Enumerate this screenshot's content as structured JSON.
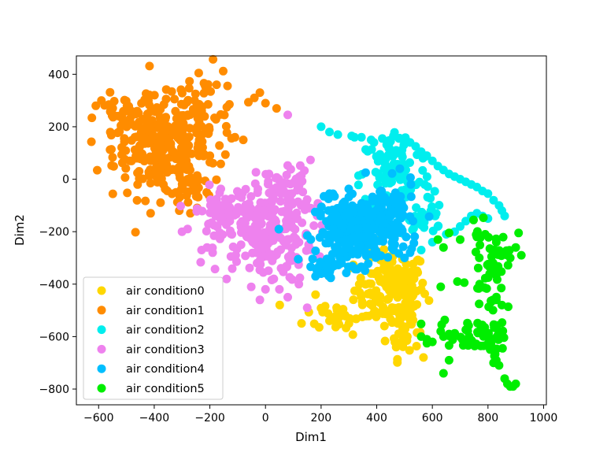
{
  "chart_data": {
    "type": "scatter",
    "title": "",
    "xlabel": "Dim1",
    "ylabel": "Dim2",
    "xlim": [
      -680,
      1010
    ],
    "ylim": [
      -860,
      470
    ],
    "xticks": [
      -600,
      -400,
      -200,
      0,
      200,
      400,
      600,
      800,
      1000
    ],
    "yticks": [
      -800,
      -600,
      -400,
      -200,
      0,
      200,
      400
    ],
    "grid": false,
    "legend": "lower-left",
    "series": [
      {
        "name": "air condition0",
        "color": "#FFD700",
        "clusters": [
          {
            "cx": 450,
            "cy": -420,
            "sx": 65,
            "sy": 75,
            "n": 150
          },
          {
            "cx": 260,
            "cy": -520,
            "sx": 60,
            "sy": 35,
            "n": 30
          },
          {
            "cx": 500,
            "cy": -560,
            "sx": 25,
            "sy": 60,
            "n": 35
          }
        ],
        "points": [
          [
            180,
            -440
          ],
          [
            230,
            -540
          ],
          [
            300,
            -550
          ],
          [
            470,
            -640
          ],
          [
            510,
            -600
          ],
          [
            560,
            -420
          ],
          [
            400,
            -450
          ]
        ]
      },
      {
        "name": "air condition1",
        "color": "#FF8C00",
        "clusters": [
          {
            "cx": -380,
            "cy": 120,
            "sx": 85,
            "sy": 95,
            "n": 220
          },
          {
            "cx": -230,
            "cy": 230,
            "sx": 70,
            "sy": 95,
            "n": 80
          },
          {
            "cx": -520,
            "cy": 230,
            "sx": 45,
            "sy": 45,
            "n": 35
          },
          {
            "cx": -270,
            "cy": -20,
            "sx": 40,
            "sy": 40,
            "n": 30
          }
        ],
        "points": [
          [
            -610,
            280
          ],
          [
            -590,
            300
          ],
          [
            -240,
            405
          ],
          [
            -20,
            330
          ],
          [
            0,
            290
          ],
          [
            -40,
            310
          ],
          [
            -110,
            160
          ],
          [
            -80,
            150
          ],
          [
            40,
            270
          ],
          [
            -270,
            -130
          ],
          [
            -310,
            -120
          ]
        ]
      },
      {
        "name": "air condition2",
        "color": "#00EEEE",
        "clusters": [
          {
            "cx": 470,
            "cy": 10,
            "sx": 65,
            "sy": 90,
            "n": 100
          },
          {
            "cx": 560,
            "cy": -140,
            "sx": 40,
            "sy": 40,
            "n": 25
          }
        ],
        "points": [
          [
            390,
            140
          ],
          [
            420,
            155
          ],
          [
            450,
            145
          ],
          [
            480,
            155
          ],
          [
            505,
            150
          ],
          [
            520,
            140
          ],
          [
            540,
            125
          ],
          [
            560,
            105
          ],
          [
            580,
            90
          ],
          [
            600,
            70
          ],
          [
            620,
            50
          ],
          [
            640,
            35
          ],
          [
            660,
            20
          ],
          [
            680,
            10
          ],
          [
            700,
            0
          ],
          [
            720,
            -10
          ],
          [
            740,
            -20
          ],
          [
            760,
            -30
          ],
          [
            780,
            -45
          ],
          [
            800,
            -55
          ],
          [
            820,
            -80
          ],
          [
            840,
            -100
          ],
          [
            850,
            -120
          ],
          [
            860,
            -140
          ],
          [
            200,
            200
          ],
          [
            230,
            180
          ],
          [
            260,
            170
          ],
          [
            310,
            165
          ],
          [
            320,
            160
          ],
          [
            345,
            160
          ],
          [
            380,
            150
          ],
          [
            460,
            90
          ],
          [
            470,
            110
          ],
          [
            430,
            60
          ],
          [
            760,
            -130
          ],
          [
            780,
            -140
          ],
          [
            800,
            -150
          ],
          [
            620,
            -180
          ],
          [
            650,
            -210
          ],
          [
            680,
            -200
          ],
          [
            700,
            -180
          ],
          [
            720,
            -160
          ],
          [
            740,
            -140
          ],
          [
            600,
            -240
          ],
          [
            560,
            -270
          ]
        ]
      },
      {
        "name": "air condition3",
        "color": "#EE82EE",
        "clusters": [
          {
            "cx": -10,
            "cy": -210,
            "sx": 90,
            "sy": 90,
            "n": 200
          },
          {
            "cx": 70,
            "cy": -40,
            "sx": 55,
            "sy": 55,
            "n": 60
          },
          {
            "cx": -170,
            "cy": -120,
            "sx": 45,
            "sy": 45,
            "n": 40
          }
        ],
        "points": [
          [
            80,
            245
          ],
          [
            -300,
            -200
          ],
          [
            -280,
            -190
          ],
          [
            -230,
            -270
          ],
          [
            -210,
            -260
          ],
          [
            -190,
            -280
          ],
          [
            -20,
            -310
          ],
          [
            30,
            -380
          ],
          [
            50,
            -420
          ],
          [
            0,
            -420
          ],
          [
            -20,
            -460
          ],
          [
            80,
            -450
          ],
          [
            120,
            -400
          ],
          [
            150,
            -490
          ]
        ]
      },
      {
        "name": "air condition4",
        "color": "#00BFFF",
        "clusters": [
          {
            "cx": 330,
            "cy": -200,
            "sx": 75,
            "sy": 60,
            "n": 260
          },
          {
            "cx": 440,
            "cy": -120,
            "sx": 50,
            "sy": 55,
            "n": 70
          },
          {
            "cx": 230,
            "cy": -330,
            "sx": 30,
            "sy": 20,
            "n": 25
          }
        ],
        "points": [
          [
            360,
            25
          ],
          [
            200,
            -360
          ],
          [
            180,
            -370
          ],
          [
            230,
            -55
          ],
          [
            500,
            -300
          ],
          [
            520,
            -280
          ]
        ]
      },
      {
        "name": "air condition5",
        "color": "#00EE00",
        "clusters": [
          {
            "cx": 800,
            "cy": -330,
            "sx": 35,
            "sy": 70,
            "n": 45
          },
          {
            "cx": 740,
            "cy": -590,
            "sx": 60,
            "sy": 30,
            "n": 35
          },
          {
            "cx": 820,
            "cy": -570,
            "sx": 25,
            "sy": 70,
            "n": 25
          }
        ],
        "points": [
          [
            660,
            -205
          ],
          [
            620,
            -230
          ],
          [
            640,
            -260
          ],
          [
            700,
            -230
          ],
          [
            760,
            -220
          ],
          [
            790,
            -210
          ],
          [
            830,
            -240
          ],
          [
            910,
            -205
          ],
          [
            900,
            -260
          ],
          [
            920,
            -290
          ],
          [
            880,
            -300
          ],
          [
            630,
            -410
          ],
          [
            690,
            -390
          ],
          [
            770,
            -400
          ],
          [
            830,
            -460
          ],
          [
            850,
            -480
          ],
          [
            860,
            -760
          ],
          [
            870,
            -780
          ],
          [
            880,
            -790
          ],
          [
            890,
            -790
          ],
          [
            900,
            -780
          ],
          [
            830,
            -690
          ],
          [
            820,
            -700
          ],
          [
            840,
            -710
          ],
          [
            640,
            -600
          ],
          [
            660,
            -590
          ],
          [
            580,
            -610
          ],
          [
            600,
            -620
          ],
          [
            630,
            -580
          ],
          [
            640,
            -740
          ],
          [
            660,
            -690
          ],
          [
            560,
            -600
          ]
        ]
      }
    ]
  }
}
